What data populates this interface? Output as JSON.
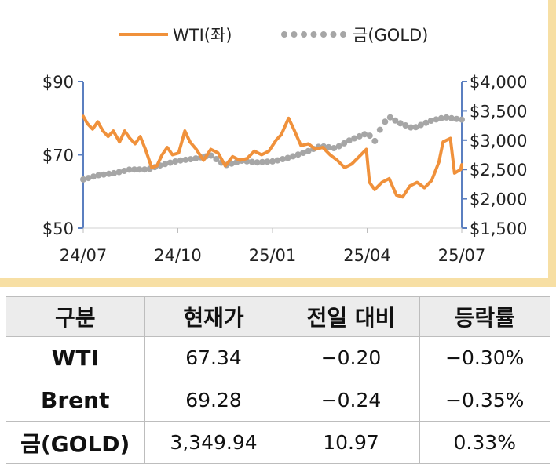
{
  "chart_data": {
    "type": "line",
    "legend": {
      "position": "top",
      "items": [
        {
          "label": "WTI(좌)",
          "color": "#f0913b",
          "style": "solid"
        },
        {
          "label": "금(GOLD)",
          "color": "#a6a6a6",
          "style": "dotted"
        }
      ]
    },
    "x_ticks": [
      "24/07",
      "24/10",
      "25/01",
      "25/04",
      "25/07"
    ],
    "x_range": [
      "2024-07-01",
      "2025-07-01"
    ],
    "y_left": {
      "ticks": [
        "$50",
        "$70",
        "$90"
      ],
      "range": [
        50,
        90
      ]
    },
    "y_right": {
      "ticks": [
        "$1,500",
        "$2,000",
        "$2,500",
        "$3,000",
        "$3,500",
        "$4,000"
      ],
      "range": [
        1500,
        4000
      ]
    },
    "grid": false,
    "series": [
      {
        "name": "WTI(좌)",
        "axis": "left",
        "color": "#f0913b",
        "x": [
          "2024-07-01",
          "2024-07-05",
          "2024-07-10",
          "2024-07-15",
          "2024-07-20",
          "2024-07-25",
          "2024-07-30",
          "2024-08-05",
          "2024-08-10",
          "2024-08-15",
          "2024-08-20",
          "2024-08-25",
          "2024-08-30",
          "2024-09-05",
          "2024-09-10",
          "2024-09-15",
          "2024-09-20",
          "2024-09-25",
          "2024-10-01",
          "2024-10-07",
          "2024-10-12",
          "2024-10-18",
          "2024-10-25",
          "2024-11-01",
          "2024-11-08",
          "2024-11-15",
          "2024-11-22",
          "2024-11-29",
          "2024-12-06",
          "2024-12-13",
          "2024-12-20",
          "2024-12-27",
          "2025-01-03",
          "2025-01-08",
          "2025-01-15",
          "2025-01-20",
          "2025-01-27",
          "2025-02-03",
          "2025-02-10",
          "2025-02-17",
          "2025-02-24",
          "2025-03-03",
          "2025-03-10",
          "2025-03-17",
          "2025-03-24",
          "2025-03-31",
          "2025-04-03",
          "2025-04-08",
          "2025-04-15",
          "2025-04-22",
          "2025-04-29",
          "2025-05-05",
          "2025-05-12",
          "2025-05-19",
          "2025-05-26",
          "2025-06-02",
          "2025-06-09",
          "2025-06-13",
          "2025-06-20",
          "2025-06-24",
          "2025-06-30",
          "2025-07-01"
        ],
        "values": [
          80.5,
          78.5,
          77.0,
          79.0,
          76.5,
          75.0,
          76.5,
          73.5,
          76.5,
          74.5,
          73.0,
          75.0,
          71.5,
          66.5,
          67.0,
          70.0,
          72.0,
          70.0,
          70.5,
          76.5,
          73.5,
          71.5,
          68.5,
          71.5,
          70.5,
          67.0,
          69.5,
          68.5,
          69.0,
          71.0,
          70.0,
          71.0,
          74.0,
          75.5,
          80.0,
          77.0,
          72.5,
          73.0,
          71.5,
          72.0,
          70.0,
          68.5,
          66.5,
          67.5,
          69.5,
          71.5,
          62.5,
          60.5,
          62.5,
          63.5,
          59.0,
          58.5,
          61.5,
          62.5,
          61.0,
          63.0,
          68.0,
          73.5,
          74.5,
          65.0,
          66.0,
          67.3
        ]
      },
      {
        "name": "금(GOLD)",
        "axis": "right",
        "color": "#a6a6a6",
        "x": [
          "2024-07-01",
          "2024-07-15",
          "2024-08-01",
          "2024-08-15",
          "2024-09-01",
          "2024-09-15",
          "2024-10-01",
          "2024-10-15",
          "2024-11-01",
          "2024-11-15",
          "2024-12-01",
          "2024-12-15",
          "2025-01-01",
          "2025-01-15",
          "2025-02-01",
          "2025-02-15",
          "2025-03-01",
          "2025-03-15",
          "2025-04-01",
          "2025-04-08",
          "2025-04-15",
          "2025-04-22",
          "2025-05-01",
          "2025-05-15",
          "2025-06-01",
          "2025-06-15",
          "2025-07-01"
        ],
        "values": [
          2330,
          2400,
          2440,
          2500,
          2500,
          2580,
          2650,
          2680,
          2740,
          2570,
          2650,
          2620,
          2640,
          2700,
          2800,
          2900,
          2860,
          3000,
          3120,
          2980,
          3250,
          3400,
          3300,
          3200,
          3330,
          3390,
          3350
        ]
      }
    ]
  },
  "table": {
    "headers": [
      "구분",
      "현재가",
      "전일 대비",
      "등락률"
    ],
    "rows": [
      {
        "name": "WTI",
        "price": "67.34",
        "change": "−0.20",
        "rate": "−0.30%"
      },
      {
        "name": "Brent",
        "price": "69.28",
        "change": "−0.24",
        "rate": "−0.35%"
      },
      {
        "name": "금(GOLD)",
        "price": "3,349.94",
        "change": "10.97",
        "rate": "0.33%"
      }
    ]
  }
}
